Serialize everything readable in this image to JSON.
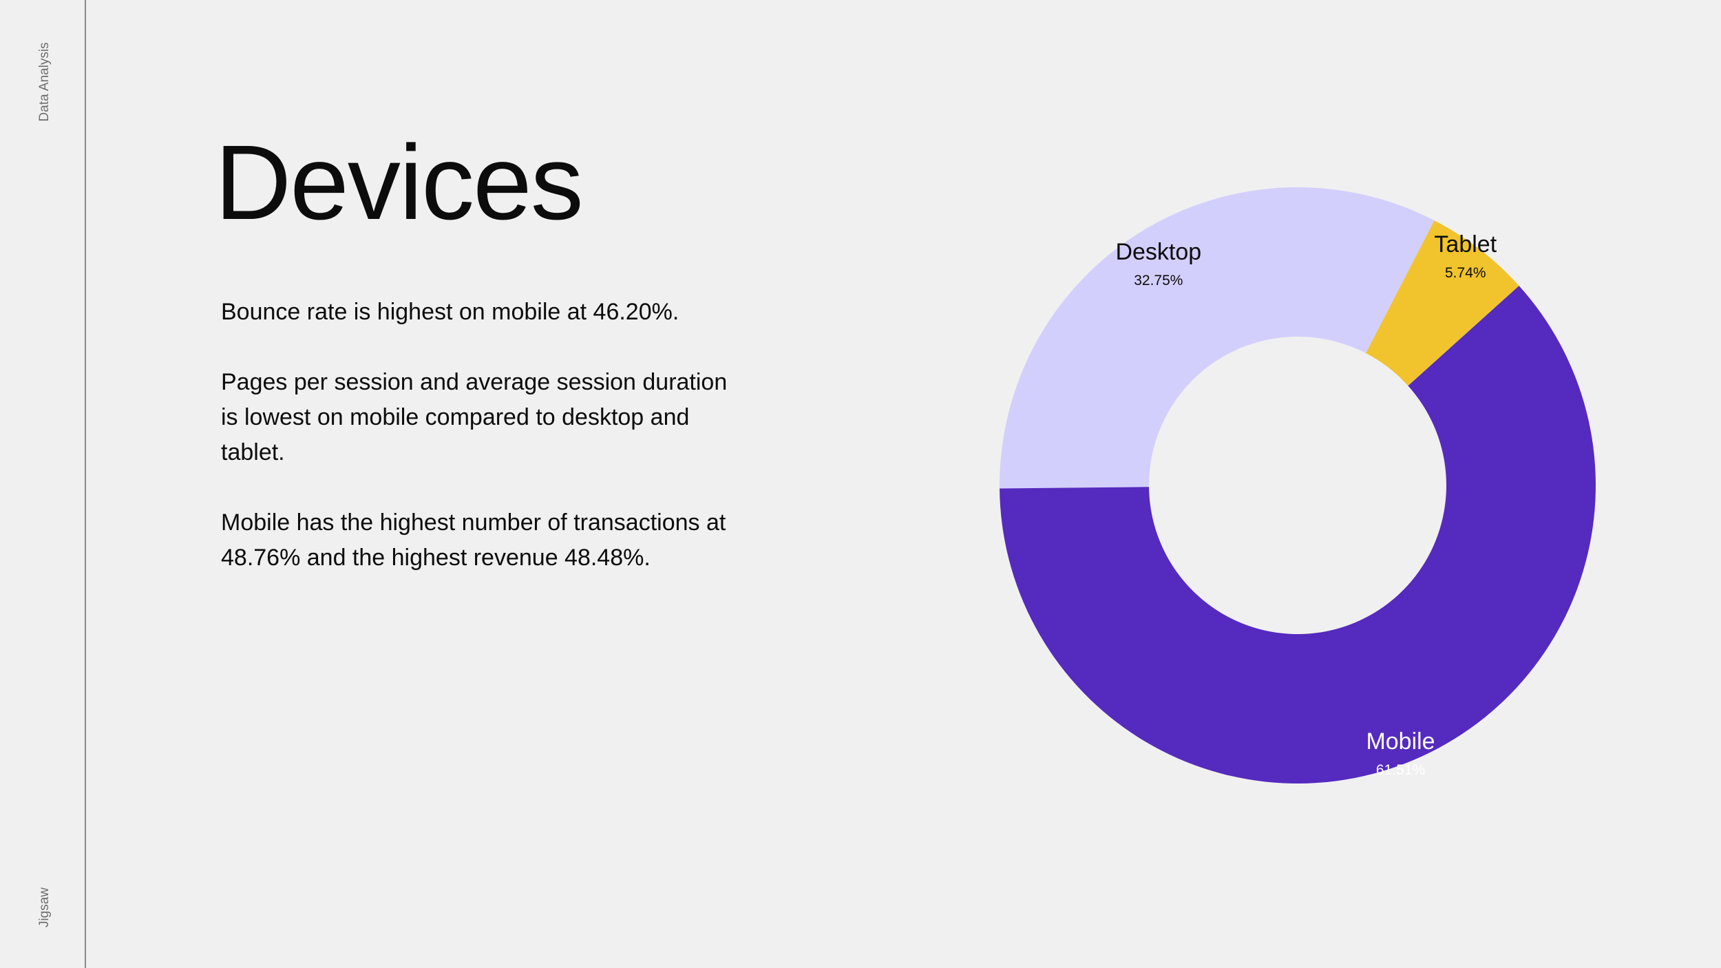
{
  "sidebar": {
    "top_label": "Data Analysis",
    "bottom_label": "Jigsaw"
  },
  "slide": {
    "title": "Devices",
    "paragraphs": [
      "Bounce rate is highest on mobile at 46.20%.",
      "Pages per session and average session duration is lowest on mobile compared to desktop and tablet.",
      "Mobile has the highest number of transactions at 48.76% and the highest revenue 48.48%."
    ]
  },
  "chart_data": {
    "type": "pie",
    "donut": true,
    "title": "",
    "slices": [
      {
        "name": "Desktop",
        "value": 32.75,
        "value_label": "32.75%",
        "color": "#d3cffd",
        "text_color": "#0c0c0c"
      },
      {
        "name": "Tablet",
        "value": 5.74,
        "value_label": "5.74%",
        "color": "#f1c42d",
        "text_color": "#0c0c0c"
      },
      {
        "name": "Mobile",
        "value": 61.51,
        "value_label": "61.51%",
        "color": "#552abe",
        "text_color": "#ffffff"
      }
    ]
  }
}
